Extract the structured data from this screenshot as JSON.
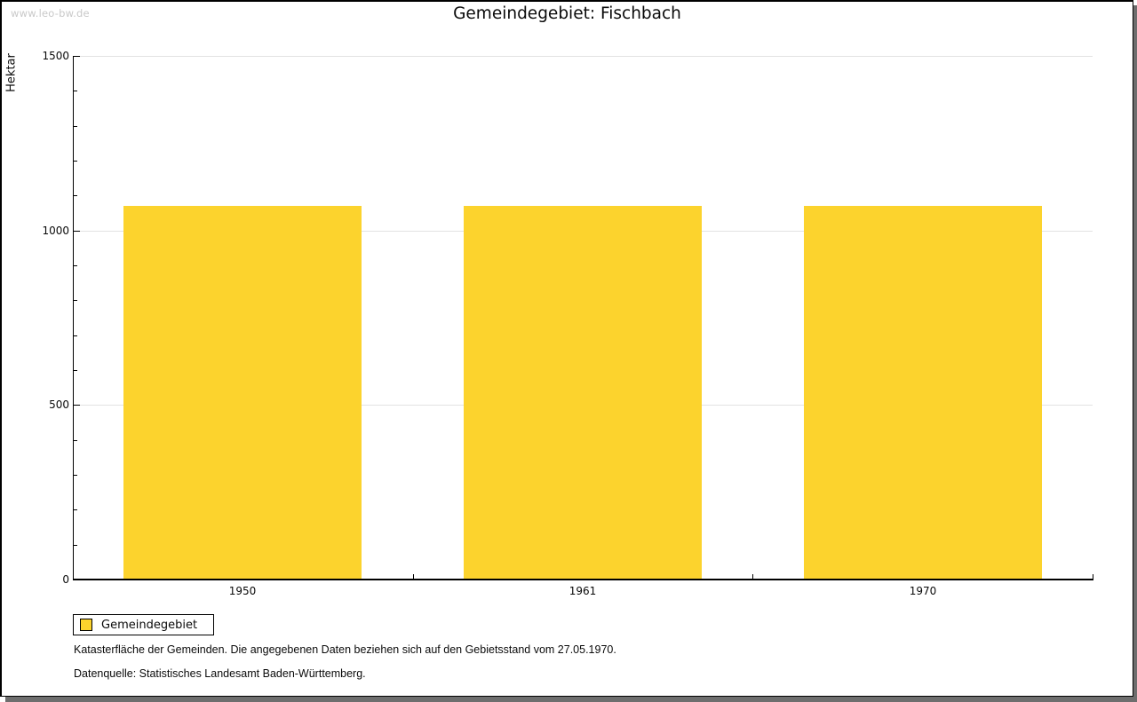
{
  "watermark": "www.leo-bw.de",
  "chart_data": {
    "type": "bar",
    "title": "Gemeindegebiet: Fischbach",
    "ylabel": "Hektar",
    "xlabel": "",
    "categories": [
      "1950",
      "1961",
      "1970"
    ],
    "series": [
      {
        "name": "Gemeindegebiet",
        "values": [
          1071,
          1071,
          1071
        ],
        "color": "#FCD32D"
      }
    ],
    "ylim": [
      0,
      1500
    ],
    "yticks_major": [
      0,
      500,
      1000,
      1500
    ],
    "ytick_minor_step": 100,
    "grid": "horizontal-major-only",
    "legend_position": "bottom-left"
  },
  "footnotes": [
    "Katasterfläche der Gemeinden. Die angegebenen Daten beziehen sich auf den Gebietsstand vom 27.05.1970.",
    "Datenquelle: Statistisches Landesamt Baden-Württemberg."
  ],
  "colors": {
    "bar": "#FCD32D",
    "gridline": "#E2E2E2",
    "axis": "#000000",
    "frame_shadow": "#6E6E6E",
    "watermark_text": "#C9C9C9"
  }
}
